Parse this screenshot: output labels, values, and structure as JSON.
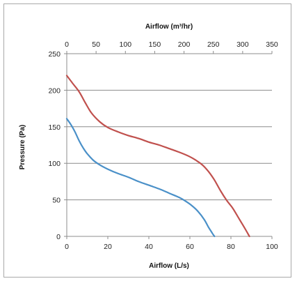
{
  "chart_data": {
    "type": "line",
    "xlabel": "Airflow (L/s)",
    "x2label": "Airflow (m³/hr)",
    "ylabel": "Pressure (Pa)",
    "xlim": [
      0,
      100
    ],
    "x2lim": [
      0,
      350
    ],
    "ylim": [
      0,
      250
    ],
    "x_ticks": [
      0,
      20,
      40,
      60,
      80,
      100
    ],
    "x2_ticks": [
      0,
      50,
      100,
      150,
      200,
      250,
      300,
      350
    ],
    "y_ticks": [
      0,
      50,
      100,
      150,
      200,
      250
    ],
    "grid": "horizontal",
    "series": [
      {
        "color": "#c0504d",
        "x": [
          0,
          3,
          6,
          9,
          12,
          16,
          20,
          25,
          30,
          35,
          40,
          45,
          50,
          55,
          60,
          63,
          66,
          69,
          72,
          75,
          78,
          81,
          84,
          87,
          89
        ],
        "y": [
          220,
          209,
          198,
          183,
          169,
          157,
          149,
          143,
          138,
          134,
          129,
          125,
          120,
          115,
          109,
          104,
          98,
          89,
          77,
          62,
          49,
          38,
          24,
          10,
          0
        ]
      },
      {
        "color": "#4a90c8",
        "x": [
          0,
          2,
          4,
          6,
          8,
          10,
          13,
          16,
          20,
          25,
          30,
          35,
          40,
          45,
          50,
          55,
          58,
          61,
          64,
          67,
          69,
          71,
          72
        ],
        "y": [
          161,
          153,
          143,
          131,
          121,
          113,
          104,
          98,
          92,
          86,
          81,
          75,
          70,
          65,
          59,
          53,
          48,
          42,
          34,
          23,
          13,
          4,
          0
        ]
      }
    ]
  }
}
